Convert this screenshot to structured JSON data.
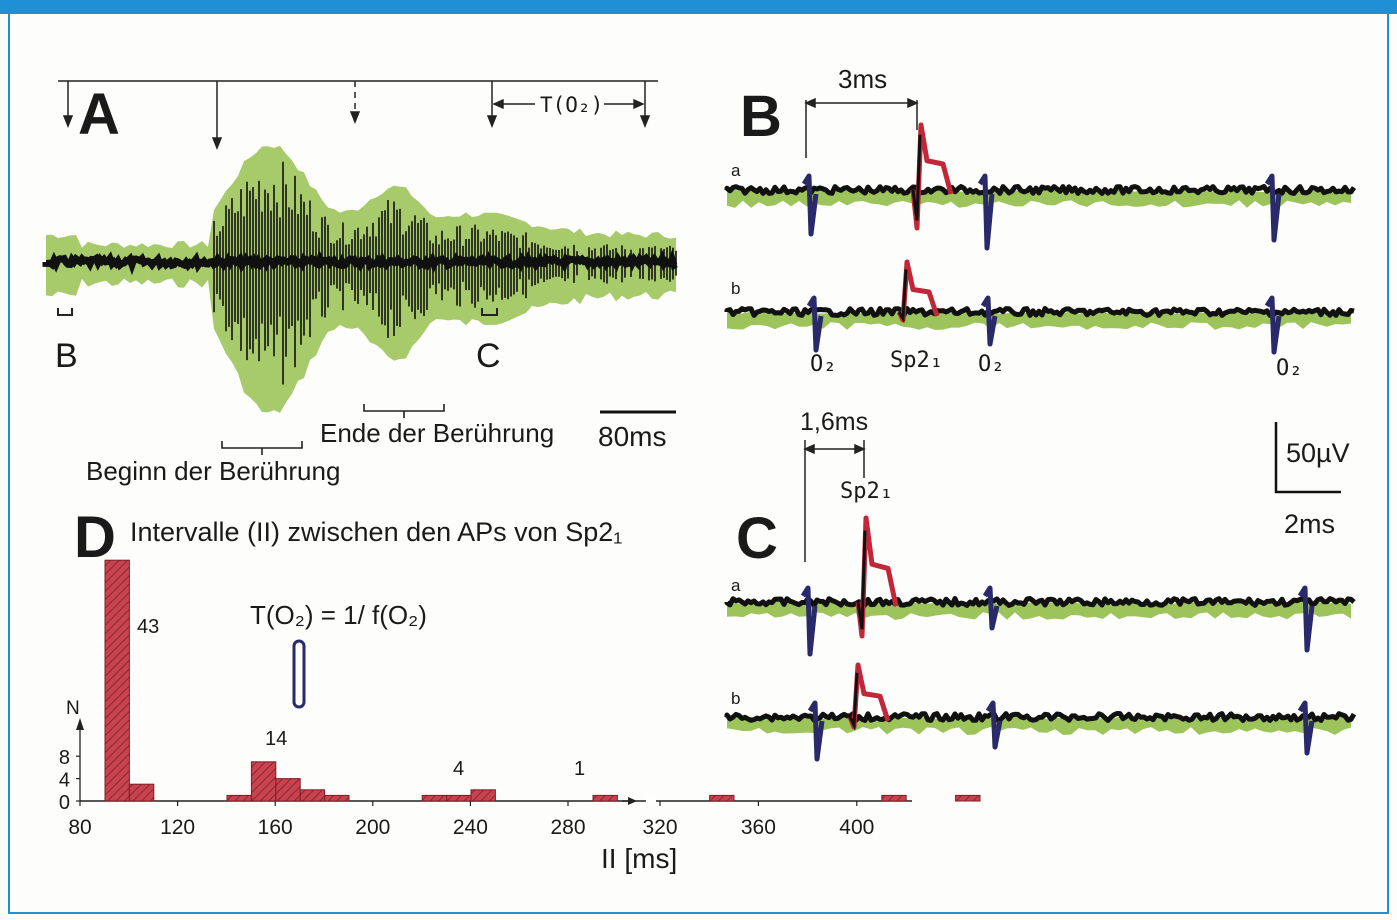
{
  "panel_a": {
    "label": "A",
    "period_label": "T(O₂)",
    "marker_b": "B",
    "marker_c": "C",
    "scale_label": "80ms",
    "touch_start": "Beginn der Berührung",
    "touch_end": "Ende der Berührung"
  },
  "panel_b": {
    "label": "B",
    "interval_label": "3ms",
    "trace_a": "a",
    "trace_b": "b",
    "unit_o2_1": "O₂",
    "unit_sp": "Sp2₁",
    "unit_o2_2": "O₂",
    "unit_o2_3": "O₂"
  },
  "panel_c": {
    "label": "C",
    "interval_label": "1,6ms",
    "unit_sp": "Sp2₁",
    "trace_a": "a",
    "trace_b": "b",
    "scale_voltage": "50µV",
    "scale_time": "2ms"
  },
  "panel_d": {
    "label": "D",
    "title": "Intervalle (II) zwischen den APs von Sp2₁",
    "formula": "T(O₂)  = 1/ f(O₂)",
    "annotations": [
      "43",
      "14",
      "4",
      "1"
    ]
  },
  "colors": {
    "frame": "#1f8fd6",
    "trace": "#111111",
    "envelope": "#9dc45a",
    "spike_red": "#c0283a",
    "spike_blue": "#2a2a6a",
    "bar": "#c8434f"
  },
  "chart_data": {
    "type": "bar",
    "title": "Intervalle (II) zwischen den APs von Sp2₁",
    "xlabel": "II [ms]",
    "ylabel": "N",
    "x_ticks": [
      80,
      120,
      160,
      200,
      240,
      280,
      320,
      360,
      400
    ],
    "y_ticks": [
      0,
      4,
      8
    ],
    "axis_break": [
      298,
      308
    ],
    "bin_width": 10,
    "bins": [
      {
        "x": 80,
        "n": 43
      },
      {
        "x": 90,
        "n": 3
      },
      {
        "x": 130,
        "n": 1
      },
      {
        "x": 140,
        "n": 7
      },
      {
        "x": 150,
        "n": 4
      },
      {
        "x": 160,
        "n": 2
      },
      {
        "x": 170,
        "n": 1
      },
      {
        "x": 210,
        "n": 1
      },
      {
        "x": 220,
        "n": 1
      },
      {
        "x": 230,
        "n": 2
      },
      {
        "x": 280,
        "n": 1
      },
      {
        "x": 330,
        "n": 1
      },
      {
        "x": 400,
        "n": 1
      },
      {
        "x": 430,
        "n": 1
      }
    ]
  }
}
